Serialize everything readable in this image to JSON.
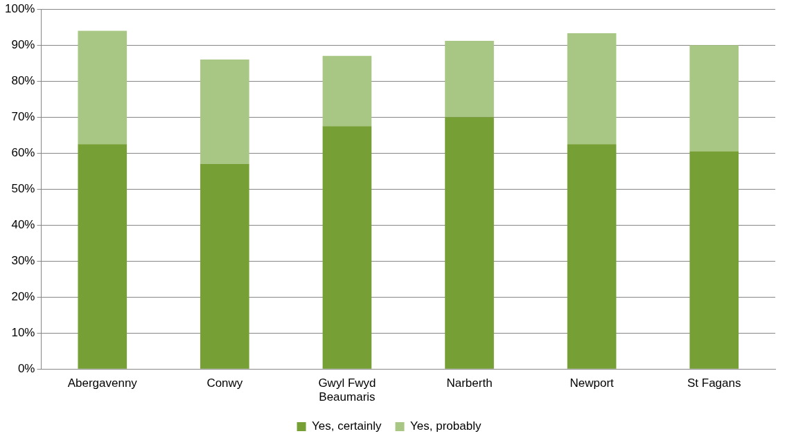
{
  "chart_data": {
    "type": "bar",
    "stacked": true,
    "categories": [
      "Abergavenny",
      "Conwy",
      "Gwyl Fwyd Beaumaris",
      "Narberth",
      "Newport",
      "St Fagans"
    ],
    "series": [
      {
        "name": "Yes, certainly",
        "color": "#76a035",
        "values": [
          62.5,
          57,
          67.5,
          70,
          62.5,
          60.5
        ]
      },
      {
        "name": "Yes, probably",
        "color": "#a9c784",
        "values": [
          31.5,
          29,
          19.5,
          21.2,
          30.8,
          29.5
        ]
      }
    ],
    "ylim": [
      0,
      100
    ],
    "yticks": [
      {
        "value": 0,
        "label": "0%"
      },
      {
        "value": 10,
        "label": "10%"
      },
      {
        "value": 20,
        "label": "20%"
      },
      {
        "value": 30,
        "label": "30%"
      },
      {
        "value": 40,
        "label": "40%"
      },
      {
        "value": 50,
        "label": "50%"
      },
      {
        "value": 60,
        "label": "60%"
      },
      {
        "value": 70,
        "label": "70%"
      },
      {
        "value": 80,
        "label": "80%"
      },
      {
        "value": 90,
        "label": "90%"
      },
      {
        "value": 100,
        "label": "100%"
      }
    ],
    "grid": "y",
    "legend": "bottom"
  }
}
